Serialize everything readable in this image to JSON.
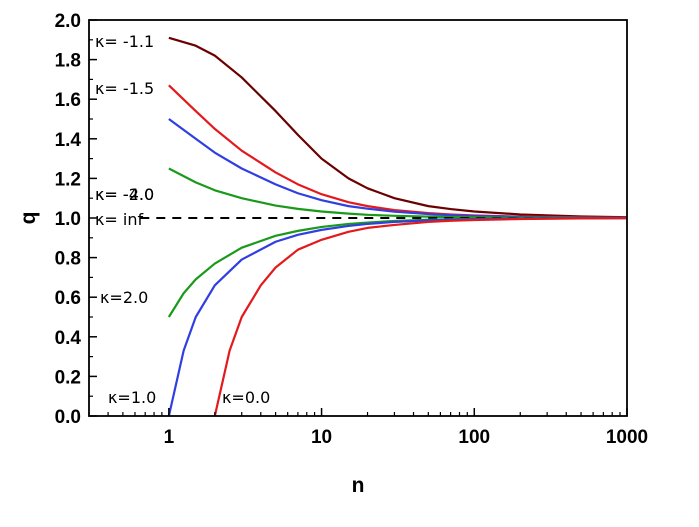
{
  "chart_data": {
    "type": "line",
    "xlabel": "n",
    "ylabel": "q",
    "xscale": "log",
    "xlim": [
      0.3,
      1000
    ],
    "ylim": [
      0.0,
      2.0
    ],
    "xticks": [
      {
        "value": 1,
        "label": "1"
      },
      {
        "value": 10,
        "label": "10"
      },
      {
        "value": 100,
        "label": "100"
      },
      {
        "value": 1000,
        "label": "1000"
      }
    ],
    "yticks": [
      {
        "value": 0.0,
        "label": "0.0"
      },
      {
        "value": 0.2,
        "label": "0.2"
      },
      {
        "value": 0.4,
        "label": "0.4"
      },
      {
        "value": 0.6,
        "label": "0.6"
      },
      {
        "value": 0.8,
        "label": "0.8"
      },
      {
        "value": 1.0,
        "label": "1.0"
      },
      {
        "value": 1.2,
        "label": "1.2"
      },
      {
        "value": 1.4,
        "label": "1.4"
      },
      {
        "value": 1.6,
        "label": "1.6"
      },
      {
        "value": 1.8,
        "label": "1.8"
      },
      {
        "value": 2.0,
        "label": "2.0"
      }
    ],
    "grid": false,
    "series": [
      {
        "label": "κ= -1.1",
        "kappa": -1.1,
        "color": "#6b0000",
        "dashed": false,
        "x": [
          1,
          1.5,
          2,
          3,
          5,
          7,
          10,
          15,
          20,
          30,
          50,
          70,
          100,
          200,
          500,
          1000
        ],
        "y": [
          1.91,
          1.87,
          1.82,
          1.71,
          1.54,
          1.42,
          1.3,
          1.2,
          1.15,
          1.1,
          1.06,
          1.045,
          1.033,
          1.018,
          1.008,
          1.004
        ]
      },
      {
        "label": "κ= -1.5",
        "kappa": -1.5,
        "color": "#e31a1c",
        "dashed": false,
        "x": [
          1,
          1.5,
          2,
          3,
          5,
          7,
          10,
          15,
          20,
          30,
          50,
          70,
          100,
          200,
          500,
          1000
        ],
        "y": [
          1.67,
          1.54,
          1.45,
          1.34,
          1.23,
          1.17,
          1.12,
          1.08,
          1.06,
          1.04,
          1.025,
          1.018,
          1.013,
          1.007,
          1.003,
          1.0015
        ]
      },
      {
        "label": "κ= -2.0",
        "kappa": -2.0,
        "color": "#2f3fe0",
        "dashed": false,
        "x": [
          1,
          1.5,
          2,
          3,
          5,
          7,
          10,
          15,
          20,
          30,
          50,
          70,
          100,
          200,
          500,
          1000
        ],
        "y": [
          1.5,
          1.4,
          1.33,
          1.25,
          1.17,
          1.125,
          1.09,
          1.06,
          1.047,
          1.032,
          1.02,
          1.014,
          1.01,
          1.005,
          1.002,
          1.001
        ]
      },
      {
        "label": "κ= -4.0",
        "kappa": -4.0,
        "color": "#1a9a1a",
        "dashed": false,
        "x": [
          1,
          1.5,
          2,
          3,
          5,
          7,
          10,
          15,
          20,
          30,
          50,
          70,
          100,
          200,
          500,
          1000
        ],
        "y": [
          1.25,
          1.18,
          1.14,
          1.1,
          1.063,
          1.046,
          1.033,
          1.022,
          1.016,
          1.011,
          1.007,
          1.005,
          1.003,
          1.0017,
          1.0007,
          1.0003
        ]
      },
      {
        "label": "κ= inf",
        "kappa": "inf",
        "color": "#000000",
        "dashed": true,
        "x": [
          0.65,
          1000
        ],
        "y": [
          1.0,
          1.0
        ]
      },
      {
        "label": "κ=2.0",
        "kappa": 2.0,
        "color": "#1a9a1a",
        "dashed": false,
        "x": [
          1,
          1.25,
          1.5,
          2,
          3,
          5,
          7,
          10,
          15,
          20,
          30,
          50,
          70,
          100,
          200,
          500,
          1000
        ],
        "y": [
          0.5,
          0.62,
          0.69,
          0.77,
          0.85,
          0.91,
          0.935,
          0.955,
          0.97,
          0.977,
          0.985,
          0.991,
          0.994,
          0.996,
          0.998,
          0.9992,
          0.9996
        ]
      },
      {
        "label": "κ=1.0",
        "kappa": 1.0,
        "color": "#2f3fe0",
        "dashed": false,
        "x": [
          1,
          1.25,
          1.5,
          2,
          3,
          5,
          7,
          10,
          15,
          20,
          30,
          50,
          70,
          100,
          200,
          500,
          1000
        ],
        "y": [
          0.0,
          0.33,
          0.5,
          0.66,
          0.79,
          0.88,
          0.915,
          0.94,
          0.96,
          0.97,
          0.98,
          0.988,
          0.992,
          0.994,
          0.997,
          0.9988,
          0.9994
        ]
      },
      {
        "label": "κ=0.0",
        "kappa": 0.0,
        "color": "#e31a1c",
        "dashed": false,
        "x": [
          2,
          2.5,
          3,
          4,
          5,
          7,
          10,
          15,
          20,
          30,
          50,
          70,
          100,
          200,
          500,
          1000
        ],
        "y": [
          0.0,
          0.33,
          0.5,
          0.66,
          0.75,
          0.84,
          0.89,
          0.93,
          0.95,
          0.965,
          0.98,
          0.986,
          0.99,
          0.995,
          0.998,
          0.999
        ]
      }
    ]
  }
}
